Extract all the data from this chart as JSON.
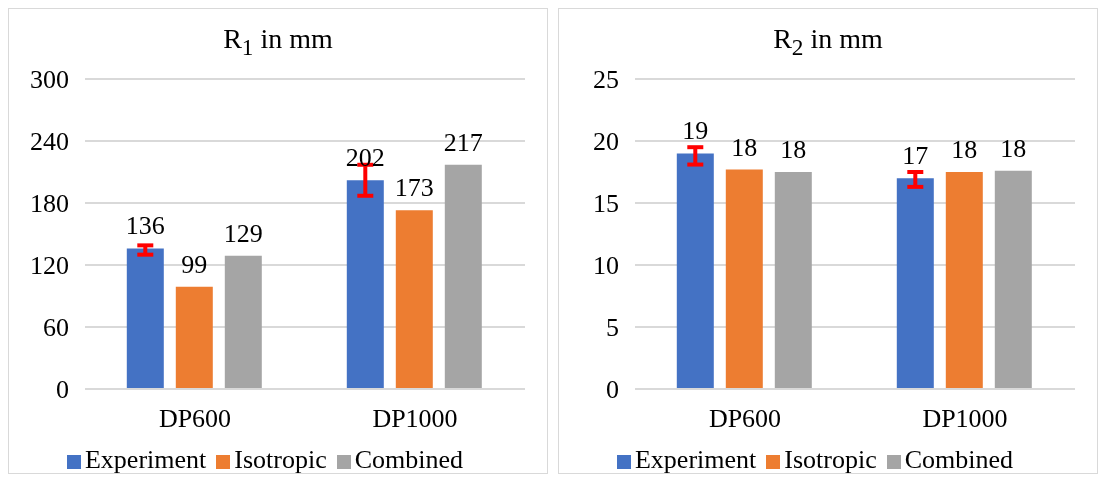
{
  "chart_data": [
    {
      "type": "bar",
      "title": "R$_{1}$ in mm",
      "categories": [
        "DP600",
        "DP1000"
      ],
      "series": [
        {
          "name": "Experiment",
          "color": "#4472c4",
          "values": [
            136,
            202
          ],
          "errors": [
            [
              130,
              139
            ],
            [
              187,
              217
            ]
          ]
        },
        {
          "name": "Isotropic",
          "color": "#ed7d31",
          "values": [
            99,
            173
          ]
        },
        {
          "name": "Combined",
          "color": "#a5a5a5",
          "values": [
            129,
            217
          ]
        }
      ],
      "ylim": [
        0,
        300
      ],
      "yticks": [
        0,
        60,
        120,
        180,
        240,
        300
      ],
      "grid": "y",
      "legend": "bottom",
      "data_labels": true
    },
    {
      "type": "bar",
      "title": "R$_{2}$ in mm",
      "categories": [
        "DP600",
        "DP1000"
      ],
      "series": [
        {
          "name": "Experiment",
          "color": "#4472c4",
          "values": [
            19,
            17
          ],
          "errors": [
            [
              18.1,
              19.5
            ],
            [
              16.3,
              17.5
            ]
          ],
          "value_labels": [
            "19",
            "17"
          ]
        },
        {
          "name": "Isotropic",
          "color": "#ed7d31",
          "values": [
            17.7,
            17.5
          ],
          "value_labels": [
            "18",
            "18"
          ]
        },
        {
          "name": "Combined",
          "color": "#a5a5a5",
          "values": [
            17.5,
            17.6
          ],
          "value_labels": [
            "18",
            "18"
          ]
        }
      ],
      "ylim": [
        0,
        25
      ],
      "yticks": [
        0,
        5,
        10,
        15,
        20,
        25
      ],
      "grid": "y",
      "legend": "bottom"
    }
  ]
}
